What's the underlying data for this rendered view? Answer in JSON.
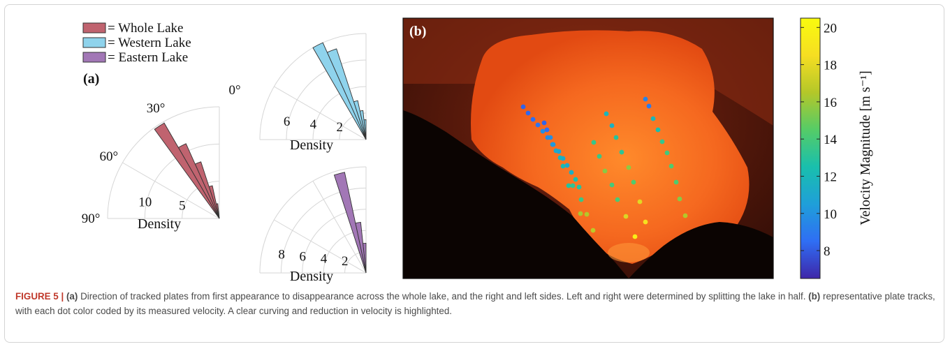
{
  "legend": {
    "items": [
      {
        "label": "= Whole Lake",
        "color": "#c0636f"
      },
      {
        "label": "= Western Lake",
        "color": "#8fd3ec"
      },
      {
        "label": "= Eastern Lake",
        "color": "#a277b6"
      }
    ]
  },
  "panel_a_label": "(a)",
  "panel_b_label": "(b)",
  "chart_data": [
    {
      "type": "polar-histogram",
      "name": "Whole Lake",
      "color": "#c0636f",
      "angle_ticks": [
        "0°",
        "30°",
        "60°",
        "90°"
      ],
      "radial_ticks": [
        "5",
        "10"
      ],
      "radial_tick_values": [
        5,
        10
      ],
      "rmax": 15,
      "xlabel": "Density",
      "bins": [
        {
          "from": 6,
          "to": 12,
          "value": 2
        },
        {
          "from": 12,
          "to": 18,
          "value": 4.5
        },
        {
          "from": 18,
          "to": 24,
          "value": 8
        },
        {
          "from": 24,
          "to": 30,
          "value": 11
        },
        {
          "from": 30,
          "to": 36,
          "value": 14.8
        }
      ]
    },
    {
      "type": "polar-histogram",
      "name": "Western Lake",
      "color": "#8fd3ec",
      "radial_ticks": [
        "2",
        "4",
        "6"
      ],
      "radial_tick_values": [
        2,
        4,
        6
      ],
      "rmax": 8,
      "xlabel": "Density",
      "bins": [
        {
          "from": 0,
          "to": 6,
          "value": 1.5
        },
        {
          "from": 6,
          "to": 12,
          "value": 2.2
        },
        {
          "from": 12,
          "to": 18,
          "value": 3
        },
        {
          "from": 18,
          "to": 24,
          "value": 7.2
        },
        {
          "from": 24,
          "to": 30,
          "value": 8
        }
      ]
    },
    {
      "type": "polar-histogram",
      "name": "Eastern Lake",
      "color": "#a277b6",
      "radial_ticks": [
        "2",
        "4",
        "6",
        "8"
      ],
      "radial_tick_values": [
        2,
        4,
        6,
        8
      ],
      "rmax": 10,
      "xlabel": "Density",
      "bins": [
        {
          "from": 0,
          "to": 6,
          "value": 2.8
        },
        {
          "from": 6,
          "to": 12,
          "value": 4.8
        },
        {
          "from": 12,
          "to": 18,
          "value": 9.7
        }
      ]
    },
    {
      "type": "scatter",
      "name": "plate tracks",
      "colorbar": {
        "label": "Velocity Magnitude [m s⁻¹]",
        "ticks": [
          8,
          10,
          12,
          14,
          16,
          18,
          20
        ],
        "range": [
          6.5,
          20.5
        ],
        "colormap": [
          "#3e26a8",
          "#2f6ef4",
          "#1f9fd9",
          "#19bfad",
          "#55cc67",
          "#b4c729",
          "#f6de22",
          "#f9fb0e"
        ]
      },
      "tracks": [
        {
          "points": [
            [
              749,
              153,
              8.2
            ],
            [
              756,
              162,
              8.3
            ],
            [
              763,
              171,
              8.6
            ],
            [
              770,
              179,
              8.8
            ],
            [
              777,
              188,
              9.8
            ],
            [
              784,
              197,
              9.7
            ],
            [
              792,
              207,
              10.2
            ],
            [
              800,
              217,
              10.8
            ],
            [
              806,
              227,
              11.1
            ],
            [
              812,
              237,
              11.2
            ],
            [
              818,
              247,
              11.5
            ],
            [
              824,
              257,
              12.5
            ],
            [
              829,
              268,
              12.9
            ],
            [
              832,
              286,
              13.6
            ],
            [
              831,
              306,
              16.3
            ],
            [
              840,
              307,
              16.5
            ],
            [
              849,
              330,
              16.8
            ]
          ]
        },
        {
          "points": [
            [
              779,
              176,
              8.2
            ],
            [
              783,
              186,
              8.6
            ],
            [
              788,
              197,
              9.8
            ],
            [
              791,
              207,
              10.2
            ],
            [
              796,
              216,
              11.1
            ],
            [
              802,
              226,
              11.8
            ],
            [
              806,
              238,
              12.2
            ],
            [
              814,
              266,
              12.9
            ],
            [
              820,
              266,
              13.2
            ]
          ]
        },
        {
          "points": [
            [
              868,
              163,
              11.9
            ],
            [
              876,
              180,
              11.6
            ],
            [
              882,
              197,
              13.0
            ],
            [
              850,
              204,
              13.5
            ],
            [
              890,
              218,
              13.2
            ],
            [
              858,
              224,
              13.6
            ],
            [
              866,
              245,
              15.6
            ],
            [
              900,
              240,
              15.7
            ],
            [
              876,
              265,
              14.0
            ],
            [
              907,
              261,
              14.3
            ],
            [
              884,
              286,
              14.1
            ],
            [
              916,
              289,
              17.9
            ],
            [
              896,
              310,
              17.7
            ],
            [
              924,
              318,
              18.7
            ],
            [
              909,
              339,
              19.6
            ]
          ]
        },
        {
          "points": [
            [
              924,
              142,
              9.4
            ],
            [
              929,
              152,
              9.0
            ],
            [
              935,
              170,
              12.0
            ],
            [
              942,
              186,
              12.5
            ],
            [
              948,
              203,
              13.4
            ],
            [
              955,
              219,
              13.9
            ],
            [
              961,
              238,
              14.3
            ],
            [
              968,
              261,
              14.3
            ],
            [
              973,
              285,
              15.5
            ],
            [
              981,
              309,
              16.5
            ]
          ]
        }
      ]
    }
  ],
  "caption": {
    "fig_label": "FIGURE 5 |",
    "a_label": "(a)",
    "a_text": " Direction of tracked plates from first appearance to disappearance across the whole lake, and the right and left sides. Left and right were determined by splitting the lake in half. ",
    "b_label": "(b)",
    "b_text": " representative plate tracks, with each dot color coded by its measured velocity. A clear curving and reduction in velocity is highlighted."
  }
}
